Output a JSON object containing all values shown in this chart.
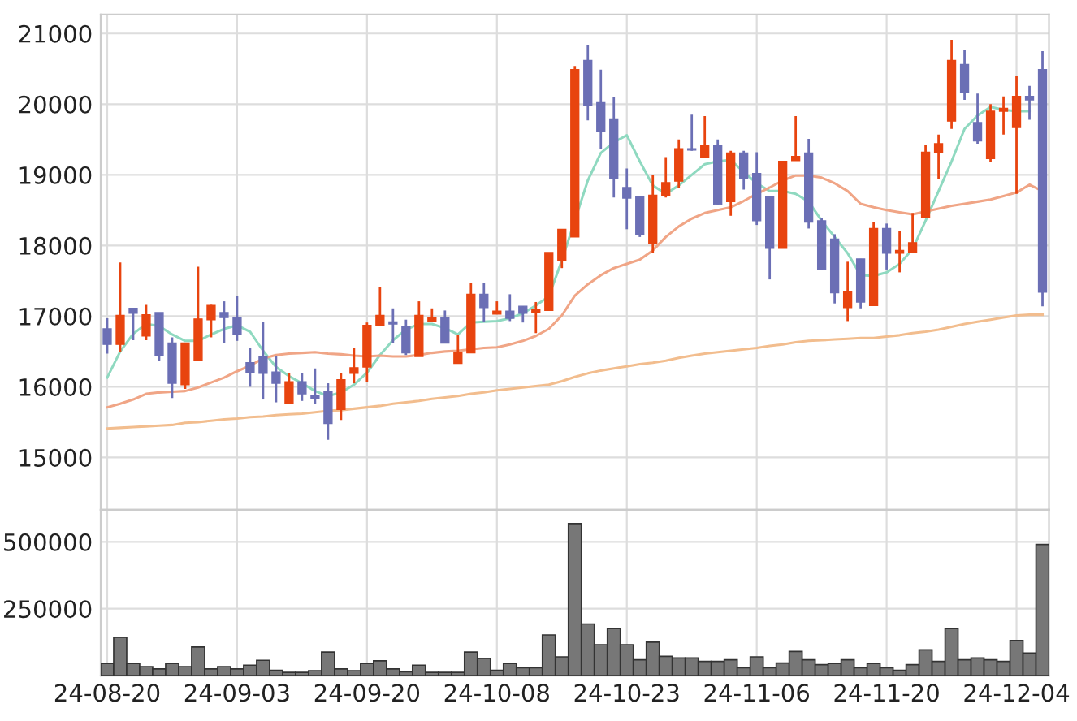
{
  "chart_data": [
    {
      "type": "candlestick",
      "categories": [
        null,
        null,
        null,
        null,
        null,
        null,
        null,
        null,
        null,
        null,
        null,
        null,
        null,
        null,
        null,
        null,
        null,
        null,
        null,
        null,
        null,
        null,
        null,
        null,
        null,
        null,
        null,
        null,
        null,
        null,
        null,
        null,
        null,
        null,
        null,
        null,
        null,
        null,
        null,
        null,
        null,
        null,
        null,
        null,
        null,
        null,
        null,
        null,
        null,
        null,
        null,
        null,
        null,
        null,
        null,
        null,
        null,
        null,
        null,
        null,
        null,
        null,
        null,
        null,
        null,
        null,
        null,
        null,
        null,
        null,
        null,
        null,
        null
      ],
      "ohlc": [
        [
          16820,
          16970,
          16470,
          16600
        ],
        [
          16600,
          17760,
          16490,
          17010
        ],
        [
          17110,
          17110,
          16660,
          17040
        ],
        [
          16720,
          17160,
          16660,
          17020
        ],
        [
          17050,
          17050,
          16360,
          16440
        ],
        [
          16620,
          16700,
          15840,
          16050
        ],
        [
          16030,
          16620,
          15970,
          16620
        ],
        [
          16380,
          17700,
          16380,
          16960
        ],
        [
          16950,
          17160,
          16700,
          17150
        ],
        [
          17050,
          17210,
          16620,
          16980
        ],
        [
          16980,
          17290,
          16650,
          16740
        ],
        [
          16340,
          16550,
          16000,
          16200
        ],
        [
          16430,
          16920,
          15820,
          16190
        ],
        [
          16210,
          16430,
          15780,
          16050
        ],
        [
          15760,
          16200,
          15760,
          16070
        ],
        [
          16070,
          16200,
          15800,
          15900
        ],
        [
          15880,
          16260,
          15760,
          15840
        ],
        [
          15930,
          16050,
          15250,
          15480
        ],
        [
          15680,
          16200,
          15530,
          16100
        ],
        [
          16190,
          16550,
          16050,
          16270
        ],
        [
          16280,
          16910,
          16070,
          16870
        ],
        [
          16870,
          17410,
          16870,
          17010
        ],
        [
          16920,
          17110,
          16620,
          16890
        ],
        [
          16850,
          16950,
          16450,
          16480
        ],
        [
          16430,
          17210,
          16430,
          17010
        ],
        [
          16920,
          17110,
          16920,
          16980
        ],
        [
          16980,
          17080,
          16620,
          16620
        ],
        [
          16330,
          16740,
          16330,
          16480
        ],
        [
          16480,
          17470,
          16480,
          17310
        ],
        [
          17310,
          17470,
          16920,
          17120
        ],
        [
          17030,
          17210,
          17030,
          17070
        ],
        [
          17070,
          17310,
          16930,
          16970
        ],
        [
          17140,
          17140,
          16910,
          17040
        ],
        [
          17050,
          17200,
          16760,
          17100
        ],
        [
          17080,
          17900,
          17080,
          17900
        ],
        [
          17790,
          18230,
          17680,
          18230
        ],
        [
          18120,
          20540,
          18120,
          20490
        ],
        [
          20620,
          20830,
          19770,
          19980
        ],
        [
          20020,
          20490,
          19370,
          19610
        ],
        [
          19790,
          20100,
          18680,
          18950
        ],
        [
          18820,
          19090,
          18230,
          18670
        ],
        [
          18690,
          18690,
          18120,
          18160
        ],
        [
          18030,
          19000,
          17890,
          18710
        ],
        [
          18710,
          19250,
          18680,
          18890
        ],
        [
          18910,
          19500,
          18810,
          19370
        ],
        [
          19370,
          19850,
          19340,
          19350
        ],
        [
          19250,
          19830,
          19250,
          19420
        ],
        [
          19420,
          19500,
          18580,
          18580
        ],
        [
          18620,
          19340,
          18420,
          19310
        ],
        [
          19310,
          19340,
          18790,
          18950
        ],
        [
          19020,
          19320,
          18290,
          18350
        ],
        [
          18690,
          18690,
          17520,
          17960
        ],
        [
          17960,
          19190,
          17960,
          19190
        ],
        [
          19200,
          19830,
          19200,
          19260
        ],
        [
          19310,
          19510,
          18240,
          18330
        ],
        [
          18350,
          18390,
          17660,
          17660
        ],
        [
          18090,
          18160,
          17180,
          17330
        ],
        [
          17120,
          17770,
          16930,
          17350
        ],
        [
          17810,
          17810,
          17110,
          17200
        ],
        [
          17150,
          18330,
          17150,
          18240
        ],
        [
          18240,
          18310,
          17660,
          17890
        ],
        [
          17890,
          18210,
          17620,
          17930
        ],
        [
          17900,
          18460,
          17900,
          18040
        ],
        [
          18390,
          19420,
          18390,
          19320
        ],
        [
          19320,
          19570,
          18940,
          19440
        ],
        [
          19760,
          20910,
          19650,
          20620
        ],
        [
          20560,
          20770,
          20060,
          20170
        ],
        [
          19740,
          20150,
          19440,
          19480
        ],
        [
          19230,
          20000,
          19180,
          19900
        ],
        [
          19900,
          20110,
          19570,
          19940
        ],
        [
          19670,
          20400,
          18730,
          20110
        ],
        [
          20110,
          20260,
          19780,
          20060
        ],
        [
          20490,
          20750,
          17140,
          17340
        ]
      ],
      "colors": [
        "#6b6fb5",
        "#e8440f",
        "#6b6fb5",
        "#e8440f",
        "#6b6fb5",
        "#6b6fb5",
        "#e8440f",
        "#e8440f",
        "#e8440f",
        "#6b6fb5",
        "#6b6fb5",
        "#6b6fb5",
        "#6b6fb5",
        "#6b6fb5",
        "#e8440f",
        "#6b6fb5",
        "#6b6fb5",
        "#6b6fb5",
        "#e8440f",
        "#e8440f",
        "#e8440f",
        "#e8440f",
        "#6b6fb5",
        "#6b6fb5",
        "#e8440f",
        "#e8440f",
        "#6b6fb5",
        "#e8440f",
        "#e8440f",
        "#6b6fb5",
        "#e8440f",
        "#6b6fb5",
        "#6b6fb5",
        "#e8440f",
        "#e8440f",
        "#e8440f",
        "#e8440f",
        "#6b6fb5",
        "#6b6fb5",
        "#6b6fb5",
        "#6b6fb5",
        "#6b6fb5",
        "#e8440f",
        "#e8440f",
        "#e8440f",
        "#6b6fb5",
        "#e8440f",
        "#6b6fb5",
        "#e8440f",
        "#6b6fb5",
        "#6b6fb5",
        "#6b6fb5",
        "#e8440f",
        "#e8440f",
        "#6b6fb5",
        "#6b6fb5",
        "#6b6fb5",
        "#e8440f",
        "#6b6fb5",
        "#e8440f",
        "#6b6fb5",
        "#e8440f",
        "#e8440f",
        "#e8440f",
        "#e8440f",
        "#e8440f",
        "#6b6fb5",
        "#6b6fb5",
        "#e8440f",
        "#e8440f",
        "#e8440f",
        "#6b6fb5",
        "#6b6fb5"
      ],
      "series": [
        {
          "type": "line",
          "color": "#8fd9c0",
          "values": [
            16130,
            16500,
            16750,
            16890,
            16860,
            16740,
            16650,
            16650,
            16740,
            16820,
            16870,
            16780,
            16510,
            16280,
            16150,
            16050,
            15940,
            15870,
            15920,
            16030,
            16200,
            16450,
            16660,
            16810,
            16890,
            16890,
            16830,
            16740,
            16910,
            16920,
            16930,
            16970,
            17040,
            17150,
            17280,
            17790,
            null,
            18920,
            19310,
            19460,
            19560,
            19190,
            18850,
            18730,
            18850,
            19000,
            19150,
            19190,
            19210,
            19040,
            18880,
            18770,
            18770,
            18730,
            18620,
            18350,
            18120,
            17890,
            17580,
            17570,
            17620,
            17740,
            17950,
            18350,
            18770,
            19190,
            19650,
            19840,
            19960,
            19920,
            19900,
            19900,
            null
          ]
        },
        {
          "type": "line",
          "color": "#f0a586",
          "values": [
            15710,
            15760,
            15820,
            15900,
            15920,
            15930,
            15940,
            15990,
            16060,
            16130,
            16220,
            16300,
            16400,
            16450,
            16470,
            16480,
            16490,
            16470,
            16460,
            16440,
            16430,
            16440,
            16430,
            16430,
            16450,
            16480,
            16500,
            16510,
            16530,
            16550,
            16560,
            16600,
            16650,
            16720,
            16820,
            17010,
            17290,
            17450,
            17580,
            17680,
            17740,
            17800,
            17930,
            18120,
            18270,
            18380,
            18460,
            18500,
            18540,
            18630,
            18730,
            18820,
            18920,
            18990,
            18990,
            18960,
            18880,
            18770,
            18590,
            18540,
            18500,
            18470,
            18440,
            18480,
            18520,
            18560,
            18590,
            18620,
            18650,
            18700,
            18750,
            18860,
            18770
          ]
        },
        {
          "type": "line",
          "color": "#f2bd8e",
          "values": [
            15410,
            15420,
            15430,
            15440,
            15450,
            15460,
            15490,
            15500,
            15520,
            15540,
            15550,
            15570,
            15580,
            15600,
            15610,
            15620,
            15640,
            15660,
            15670,
            15690,
            15710,
            15730,
            15760,
            15780,
            15800,
            15830,
            15850,
            15870,
            15900,
            15920,
            15950,
            15970,
            15990,
            16010,
            16030,
            16080,
            16140,
            16190,
            16230,
            16260,
            16290,
            16320,
            16340,
            16370,
            16410,
            16440,
            16470,
            16490,
            16510,
            16530,
            16550,
            16580,
            16600,
            16630,
            16650,
            16660,
            16670,
            16680,
            16690,
            16690,
            16710,
            16730,
            16760,
            16780,
            16810,
            16850,
            16890,
            16920,
            16950,
            16980,
            17010,
            17020,
            17020
          ]
        }
      ],
      "ylim": [
        14260,
        21270
      ],
      "yticks": [
        15000,
        16000,
        17000,
        18000,
        19000,
        20000,
        21000
      ],
      "grid": true,
      "tick_labels": "y"
    },
    {
      "type": "bar",
      "categories": [
        "24-08-20",
        null,
        null,
        null,
        null,
        null,
        null,
        null,
        null,
        null,
        "24-09-03",
        null,
        null,
        null,
        null,
        null,
        null,
        null,
        null,
        null,
        "24-09-20",
        null,
        null,
        null,
        null,
        null,
        null,
        null,
        null,
        null,
        "24-10-08",
        null,
        null,
        null,
        null,
        null,
        null,
        null,
        null,
        null,
        "24-10-23",
        null,
        null,
        null,
        null,
        null,
        null,
        null,
        null,
        null,
        "24-11-06",
        null,
        null,
        null,
        null,
        null,
        null,
        null,
        null,
        null,
        "24-11-20",
        null,
        null,
        null,
        null,
        null,
        null,
        null,
        null,
        null,
        "24-12-04",
        null,
        null
      ],
      "values": [
        45000,
        143000,
        45000,
        33000,
        25000,
        45000,
        33000,
        107000,
        25000,
        33000,
        25000,
        39000,
        57000,
        20000,
        12000,
        12000,
        18000,
        88000,
        25000,
        18000,
        45000,
        55000,
        25000,
        14000,
        39000,
        12000,
        12000,
        12000,
        88000,
        64000,
        20000,
        45000,
        29000,
        29000,
        152000,
        70000,
        568000,
        193000,
        115000,
        176000,
        115000,
        59000,
        125000,
        72000,
        66000,
        66000,
        53000,
        53000,
        59000,
        29000,
        70000,
        29000,
        47000,
        90000,
        59000,
        41000,
        45000,
        59000,
        29000,
        45000,
        29000,
        20000,
        41000,
        96000,
        53000,
        176000,
        59000,
        66000,
        59000,
        53000,
        131000,
        84000,
        490000
      ],
      "color": "#777777",
      "ylim": [
        0,
        620000
      ],
      "yticks": [
        250000,
        500000
      ],
      "grid": true
    }
  ]
}
